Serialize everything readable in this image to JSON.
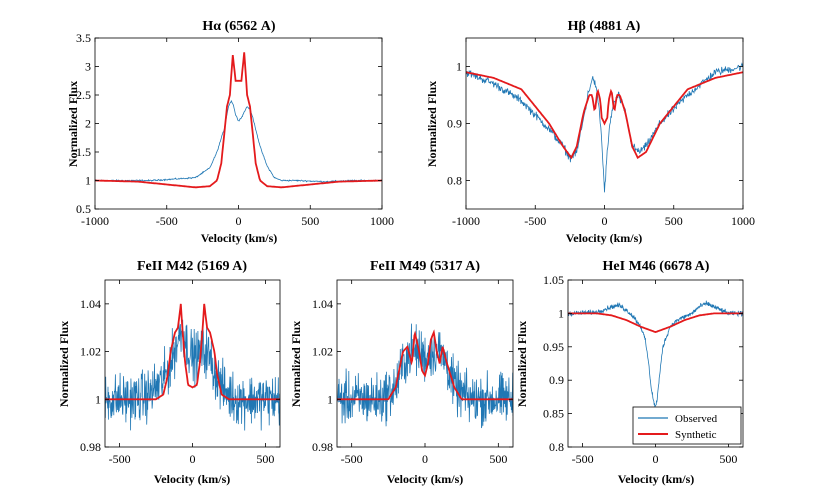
{
  "colors": {
    "observed": "#1f77b4",
    "synthetic": "#e41a1c"
  },
  "chart_data": [
    {
      "type": "line",
      "title": "Hα (6562 A)",
      "xlabel": "Velocity (km/s)",
      "ylabel": "Normalized Flux",
      "xlim": [
        -1000,
        1000
      ],
      "ylim": [
        0.5,
        3.5
      ],
      "xticks": [
        -1000,
        -500,
        0,
        500,
        1000
      ],
      "yticks": [
        0.5,
        1,
        1.5,
        2,
        2.5,
        3,
        3.5
      ],
      "ytick_labels": [
        "0.5",
        "1",
        "1.5",
        "2",
        "2.5",
        "3",
        "3.5"
      ],
      "series": [
        {
          "name": "Observed",
          "x": [
            -1000,
            -600,
            -300,
            -200,
            -150,
            -100,
            -70,
            -50,
            -35,
            -20,
            0,
            20,
            40,
            60,
            80,
            100,
            150,
            200,
            250,
            300,
            400,
            600,
            800,
            1000
          ],
          "y": [
            1.0,
            1.0,
            1.05,
            1.22,
            1.5,
            1.9,
            2.3,
            2.4,
            2.32,
            2.15,
            2.05,
            2.1,
            2.2,
            2.3,
            2.25,
            2.1,
            1.6,
            1.25,
            1.05,
            1.0,
            1.0,
            0.98,
            1.0,
            1.0
          ],
          "noise": 0.01
        },
        {
          "name": "Synthetic",
          "x": [
            -1000,
            -700,
            -500,
            -300,
            -200,
            -150,
            -120,
            -100,
            -80,
            -60,
            -40,
            -20,
            0,
            20,
            40,
            60,
            80,
            100,
            120,
            150,
            200,
            300,
            500,
            700,
            1000
          ],
          "y": [
            1.0,
            0.98,
            0.93,
            0.88,
            0.9,
            1.0,
            1.3,
            1.8,
            2.3,
            2.5,
            3.2,
            2.75,
            2.75,
            2.75,
            3.25,
            2.5,
            2.3,
            1.8,
            1.3,
            1.0,
            0.9,
            0.88,
            0.93,
            0.98,
            1.0
          ]
        }
      ]
    },
    {
      "type": "line",
      "title": "Hβ (4881 A)",
      "xlabel": "Velocity (km/s)",
      "ylabel": "Normalized Flux",
      "xlim": [
        -1000,
        1000
      ],
      "ylim": [
        0.75,
        1.05
      ],
      "xticks": [
        -1000,
        -500,
        0,
        500,
        1000
      ],
      "yticks": [
        0.8,
        0.9,
        1
      ],
      "ytick_labels": [
        "0.8",
        "0.9",
        "1"
      ],
      "series": [
        {
          "name": "Observed",
          "x": [
            -1000,
            -800,
            -600,
            -400,
            -300,
            -250,
            -200,
            -150,
            -120,
            -100,
            -80,
            -60,
            -40,
            -20,
            0,
            20,
            40,
            60,
            100,
            150,
            200,
            250,
            300,
            400,
            600,
            800,
            1000
          ],
          "y": [
            0.99,
            0.97,
            0.94,
            0.89,
            0.86,
            0.84,
            0.85,
            0.91,
            0.95,
            0.97,
            0.98,
            0.96,
            0.93,
            0.87,
            0.78,
            0.85,
            0.9,
            0.93,
            0.95,
            0.92,
            0.86,
            0.85,
            0.86,
            0.9,
            0.95,
            0.99,
            1.0
          ],
          "noise": 0.006
        },
        {
          "name": "Synthetic",
          "x": [
            -1000,
            -800,
            -600,
            -400,
            -300,
            -240,
            -200,
            -150,
            -110,
            -90,
            -70,
            -50,
            -30,
            -20,
            0,
            20,
            30,
            50,
            70,
            90,
            110,
            150,
            200,
            240,
            300,
            400,
            600,
            800,
            1000
          ],
          "y": [
            0.99,
            0.98,
            0.96,
            0.9,
            0.86,
            0.84,
            0.86,
            0.92,
            0.95,
            0.95,
            0.92,
            0.96,
            0.94,
            0.91,
            0.9,
            0.91,
            0.94,
            0.96,
            0.92,
            0.95,
            0.95,
            0.92,
            0.86,
            0.84,
            0.85,
            0.9,
            0.96,
            0.98,
            0.99
          ]
        }
      ]
    },
    {
      "type": "line",
      "title": "FeII M42 (5169 A)",
      "xlabel": "Velocity (km/s)",
      "ylabel": "Normalized Flux",
      "xlim": [
        -600,
        600
      ],
      "ylim": [
        0.98,
        1.05
      ],
      "xticks": [
        -500,
        0,
        500
      ],
      "yticks": [
        0.98,
        1,
        1.02,
        1.04
      ],
      "ytick_labels": [
        "0.98",
        "1",
        "1.02",
        "1.04"
      ],
      "series": [
        {
          "name": "Observed",
          "x": [
            -600,
            -400,
            -300,
            -200,
            -150,
            -100,
            -70,
            -50,
            -20,
            0,
            30,
            60,
            100,
            150,
            200,
            250,
            300,
            400,
            600
          ],
          "y": [
            1.0,
            1.0,
            1.002,
            1.008,
            1.015,
            1.025,
            1.03,
            1.025,
            1.02,
            1.018,
            1.018,
            1.02,
            1.02,
            1.012,
            1.005,
            1.002,
            1.0,
            1.0,
            1.0
          ],
          "noise": 0.009
        },
        {
          "name": "Synthetic",
          "x": [
            -600,
            -250,
            -200,
            -170,
            -150,
            -120,
            -100,
            -80,
            -70,
            -50,
            -30,
            0,
            30,
            50,
            70,
            80,
            100,
            120,
            150,
            170,
            200,
            250,
            600
          ],
          "y": [
            1.0,
            1.0,
            1.002,
            1.01,
            1.02,
            1.028,
            1.03,
            1.04,
            1.03,
            1.015,
            1.006,
            1.005,
            1.006,
            1.015,
            1.03,
            1.04,
            1.03,
            1.028,
            1.02,
            1.01,
            1.002,
            1.0,
            1.0
          ]
        }
      ]
    },
    {
      "type": "line",
      "title": "FeII M49 (5317 A)",
      "xlabel": "Velocity (km/s)",
      "ylabel": "Normalized Flux",
      "xlim": [
        -600,
        600
      ],
      "ylim": [
        0.98,
        1.05
      ],
      "xticks": [
        -500,
        0,
        500
      ],
      "yticks": [
        0.98,
        1,
        1.02,
        1.04
      ],
      "ytick_labels": [
        "0.98",
        "1",
        "1.02",
        "1.04"
      ],
      "series": [
        {
          "name": "Observed",
          "x": [
            -600,
            -300,
            -200,
            -150,
            -100,
            -50,
            0,
            50,
            100,
            150,
            200,
            300,
            600
          ],
          "y": [
            1.0,
            1.0,
            1.005,
            1.015,
            1.02,
            1.02,
            1.018,
            1.02,
            1.02,
            1.015,
            1.005,
            1.0,
            1.0
          ],
          "noise": 0.009
        },
        {
          "name": "Synthetic",
          "x": [
            -600,
            -250,
            -200,
            -150,
            -120,
            -90,
            -70,
            -40,
            -20,
            0,
            20,
            40,
            60,
            80,
            100,
            120,
            150,
            200,
            250,
            600
          ],
          "y": [
            1.0,
            1.0,
            1.005,
            1.02,
            1.022,
            1.015,
            1.028,
            1.02,
            1.012,
            1.01,
            1.015,
            1.025,
            1.028,
            1.02,
            1.015,
            1.022,
            1.015,
            1.005,
            1.0,
            1.0
          ]
        }
      ]
    },
    {
      "type": "line",
      "title": "HeI M46 (6678 A)",
      "xlabel": "Velocity (km/s)",
      "ylabel": "Normalized Flux",
      "xlim": [
        -600,
        600
      ],
      "ylim": [
        0.8,
        1.05
      ],
      "xticks": [
        -500,
        0,
        500
      ],
      "yticks": [
        0.8,
        0.85,
        0.9,
        0.95,
        1,
        1.05
      ],
      "ytick_labels": [
        "0.8",
        "0.85",
        "0.9",
        "0.95",
        "1",
        "1.05"
      ],
      "legend": {
        "entries": [
          "Observed",
          "Synthetic"
        ],
        "location": "bottom-right"
      },
      "series": [
        {
          "name": "Observed",
          "x": [
            -600,
            -400,
            -300,
            -250,
            -200,
            -150,
            -100,
            -70,
            -50,
            -30,
            -10,
            0,
            10,
            30,
            50,
            100,
            150,
            200,
            250,
            300,
            350,
            400,
            500,
            600
          ],
          "y": [
            1.0,
            1.002,
            1.01,
            1.012,
            1.005,
            0.995,
            0.98,
            0.96,
            0.93,
            0.89,
            0.865,
            0.86,
            0.87,
            0.91,
            0.95,
            0.98,
            0.99,
            0.995,
            1.0,
            1.01,
            1.015,
            1.01,
            1.0,
            1.0
          ],
          "noise": 0.003
        },
        {
          "name": "Synthetic",
          "x": [
            -600,
            -400,
            -300,
            -200,
            -100,
            0,
            100,
            200,
            300,
            400,
            600
          ],
          "y": [
            1.0,
            1.0,
            0.997,
            0.99,
            0.98,
            0.972,
            0.98,
            0.99,
            0.997,
            1.0,
            1.0
          ]
        }
      ]
    }
  ]
}
